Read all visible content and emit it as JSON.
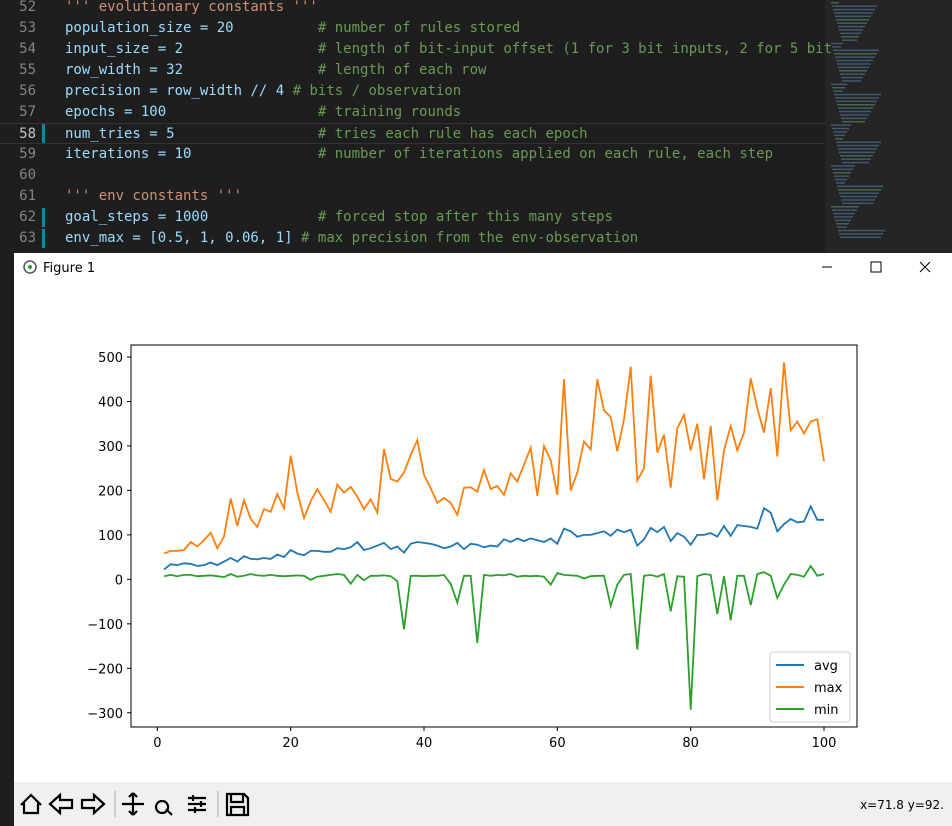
{
  "editor": {
    "lines": [
      {
        "number": 52,
        "string": "''' evolutionary constants '''"
      },
      {
        "number": 53,
        "code": "population_size = 20",
        "comment": "# number of rules stored"
      },
      {
        "number": 54,
        "code": "input_size = 2",
        "comment": "# length of bit-input offset (1 for 3 bit inputs, 2 for 5 bit"
      },
      {
        "number": 55,
        "code": "row_width = 32",
        "comment": "# length of each row"
      },
      {
        "number": 56,
        "code": "precision = row_width // 4",
        "comment": "# bits / observation"
      },
      {
        "number": 57,
        "code": "epochs = 100",
        "comment": "# training rounds"
      },
      {
        "number": 58,
        "code": "num_tries = 5",
        "comment": "# tries each rule has each epoch"
      },
      {
        "number": 59,
        "code": "iterations = 10",
        "comment": "# number of iterations applied on each rule, each step"
      },
      {
        "number": 60
      },
      {
        "number": 61,
        "string": "''' env constants '''"
      },
      {
        "number": 62,
        "code": "goal_steps = 1000",
        "comment": "# forced stop after this many steps"
      },
      {
        "number": 63,
        "code": "env_max = [0.5, 1, 0.06, 1]",
        "comment": "# max precision from the env-observation"
      }
    ]
  },
  "window": {
    "title": "Figure 1",
    "status": "x=71.8 y=92."
  },
  "chart_data": {
    "type": "line",
    "x": [
      1,
      2,
      3,
      4,
      5,
      6,
      7,
      8,
      9,
      10,
      11,
      12,
      13,
      14,
      15,
      16,
      17,
      18,
      19,
      20,
      21,
      22,
      23,
      24,
      25,
      26,
      27,
      28,
      29,
      30,
      31,
      32,
      33,
      34,
      35,
      36,
      37,
      38,
      39,
      40,
      41,
      42,
      43,
      44,
      45,
      46,
      47,
      48,
      49,
      50,
      51,
      52,
      53,
      54,
      55,
      56,
      57,
      58,
      59,
      60,
      61,
      62,
      63,
      64,
      65,
      66,
      67,
      68,
      69,
      70,
      71,
      72,
      73,
      74,
      75,
      76,
      77,
      78,
      79,
      80,
      81,
      82,
      83,
      84,
      85,
      86,
      87,
      88,
      89,
      90,
      91,
      92,
      93,
      94,
      95,
      96,
      97,
      98,
      99,
      100
    ],
    "series": [
      {
        "name": "avg",
        "color": "#1f77b4",
        "values": [
          22,
          34,
          32,
          36,
          35,
          30,
          32,
          38,
          32,
          40,
          48,
          40,
          52,
          46,
          45,
          48,
          46,
          56,
          50,
          66,
          58,
          54,
          64,
          64,
          62,
          62,
          70,
          68,
          72,
          84,
          66,
          70,
          76,
          82,
          68,
          74,
          60,
          80,
          84,
          82,
          80,
          76,
          70,
          74,
          82,
          68,
          80,
          78,
          72,
          76,
          74,
          90,
          84,
          92,
          86,
          92,
          88,
          84,
          92,
          80,
          114,
          108,
          96,
          100,
          100,
          104,
          108,
          98,
          112,
          106,
          112,
          76,
          90,
          116,
          106,
          118,
          86,
          104,
          96,
          78,
          100,
          100,
          104,
          96,
          120,
          98,
          122,
          120,
          118,
          114,
          160,
          150,
          108,
          124,
          136,
          128,
          130,
          164,
          134,
          134
        ]
      },
      {
        "name": "max",
        "color": "#ff7f0e",
        "values": [
          58,
          64,
          64,
          66,
          84,
          74,
          88,
          105,
          70,
          96,
          182,
          120,
          178,
          136,
          118,
          158,
          152,
          192,
          160,
          278,
          196,
          138,
          176,
          203,
          178,
          152,
          213,
          195,
          208,
          186,
          158,
          180,
          150,
          293,
          226,
          220,
          240,
          280,
          313,
          235,
          205,
          172,
          183,
          172,
          145,
          206,
          207,
          197,
          246,
          203,
          210,
          190,
          238,
          220,
          258,
          296,
          188,
          300,
          268,
          190,
          450,
          200,
          240,
          310,
          292,
          450,
          380,
          365,
          288,
          360,
          478,
          222,
          250,
          458,
          285,
          325,
          206,
          340,
          370,
          290,
          350,
          225,
          345,
          178,
          290,
          345,
          290,
          330,
          452,
          385,
          330,
          430,
          276,
          488,
          335,
          355,
          328,
          355,
          360,
          266
        ]
      },
      {
        "name": "min",
        "color": "#2ca02c",
        "values": [
          7,
          10,
          7,
          10,
          10,
          7,
          8,
          9,
          7,
          5,
          12,
          6,
          8,
          12,
          9,
          8,
          10,
          8,
          7,
          8,
          9,
          8,
          -1,
          6,
          8,
          10,
          12,
          10,
          -10,
          10,
          -2,
          8,
          8,
          9,
          7,
          -4,
          -112,
          8,
          8,
          7,
          8,
          8,
          10,
          -10,
          -52,
          8,
          8,
          -143,
          10,
          8,
          10,
          9,
          12,
          6,
          8,
          7,
          8,
          6,
          -12,
          14,
          10,
          9,
          8,
          2,
          7,
          8,
          8,
          -60,
          -12,
          10,
          12,
          -158,
          8,
          10,
          6,
          12,
          -72,
          7,
          6,
          -293,
          7,
          12,
          10,
          -78,
          7,
          -92,
          8,
          8,
          -58,
          12,
          16,
          8,
          -42,
          -12,
          12,
          10,
          6,
          30,
          8,
          12
        ]
      }
    ],
    "xlim": [
      -3.95,
      104.95
    ],
    "ylim": [
      -332,
      527
    ],
    "xticks": [
      0,
      20,
      40,
      60,
      80,
      100
    ],
    "yticks": [
      {
        "value": -300,
        "label": "−300"
      },
      {
        "value": -200,
        "label": "−200"
      },
      {
        "value": -100,
        "label": "−100"
      },
      0,
      100,
      200,
      300,
      400,
      500
    ],
    "legend": "lower right"
  }
}
